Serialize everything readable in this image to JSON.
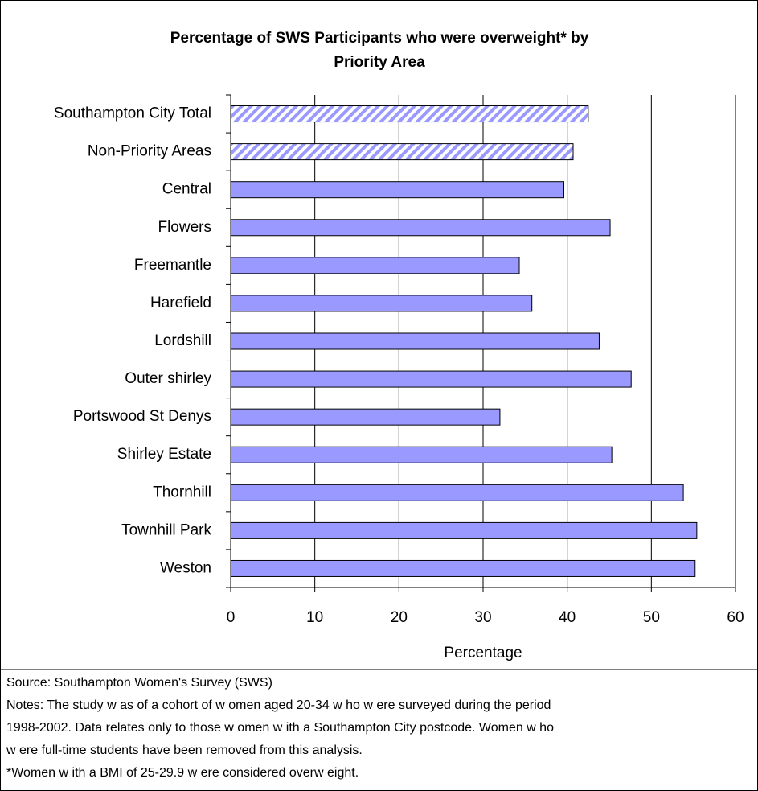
{
  "chart_data": {
    "type": "barh",
    "title": [
      "Percentage of SWS Participants who were overweight* by",
      "Priority Area"
    ],
    "categories": [
      "Southampton City Total",
      "Non-Priority Areas",
      "Central",
      "Flowers",
      "Freemantle",
      "Harefield",
      "Lordshill",
      "Outer shirley",
      "Portswood St Denys",
      "Shirley Estate",
      "Thornhill",
      "Townhill Park",
      "Weston"
    ],
    "values": [
      42.5,
      40.7,
      39.6,
      45.1,
      34.3,
      35.8,
      43.8,
      47.6,
      32.0,
      45.3,
      53.8,
      55.4,
      55.2
    ],
    "hatched": [
      true,
      true,
      false,
      false,
      false,
      false,
      false,
      false,
      false,
      false,
      false,
      false,
      false
    ],
    "color": "#9999ff",
    "xlabel": "Percentage",
    "xlim": [
      0,
      60
    ],
    "xticks": [
      0,
      10,
      20,
      30,
      40,
      50,
      60
    ],
    "grid": true,
    "footnotes": [
      "Source: Southampton Women's Survey (SWS)",
      "Notes: The study w as of a cohort of w omen aged 20-34 w ho w ere surveyed during the period",
      "1998-2002. Data relates only to those w omen w ith a Southampton City postcode. Women w ho",
      "w ere full-time students have been removed from this analysis.",
      "*Women w ith a BMI of 25-29.9 w ere considered overw eight."
    ]
  }
}
